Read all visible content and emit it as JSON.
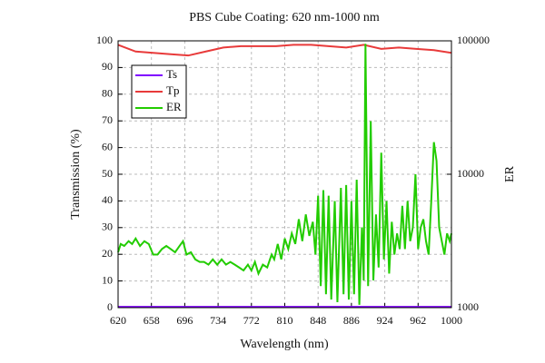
{
  "chart_data": {
    "type": "line",
    "title": "PBS Cube Coating: 620 nm-1000 nm",
    "x_label": "Wavelength (nm)",
    "y_label": "Transmission (%)",
    "y2_label": "ER",
    "xlim": [
      620,
      1000
    ],
    "xticks": [
      620,
      658,
      696,
      734,
      772,
      810,
      848,
      886,
      924,
      962,
      1000
    ],
    "ylim": [
      0,
      100
    ],
    "yticks": [
      0,
      10,
      20,
      30,
      40,
      50,
      60,
      70,
      80,
      90,
      100
    ],
    "y2lim": [
      1000,
      100000
    ],
    "y2ticks": [
      1000,
      10000,
      100000
    ],
    "y2_log": true,
    "grid": true,
    "legend": "upper-left",
    "series": [
      {
        "name": "Ts",
        "color": "#8000ff",
        "axis": "y",
        "x": [
          620,
          1000
        ],
        "values": [
          0.3,
          0.3
        ]
      },
      {
        "name": "Tp",
        "color": "#e83a3a",
        "axis": "y",
        "x": [
          620,
          640,
          660,
          680,
          700,
          720,
          740,
          760,
          780,
          800,
          820,
          840,
          860,
          880,
          900,
          920,
          940,
          960,
          980,
          1000
        ],
        "values": [
          98.5,
          96,
          95.5,
          95,
          94.5,
          96,
          97.5,
          98,
          98,
          98,
          98.5,
          98.5,
          98,
          97.5,
          98.5,
          97,
          97.5,
          97,
          96.5,
          95.5
        ]
      },
      {
        "name": "ER",
        "color": "#22cc00",
        "axis": "y2",
        "x": [
          620,
          623,
          627,
          632,
          636,
          640,
          645,
          650,
          655,
          660,
          665,
          670,
          675,
          680,
          685,
          690,
          694,
          698,
          703,
          708,
          713,
          718,
          723,
          728,
          733,
          738,
          743,
          748,
          753,
          758,
          763,
          768,
          772,
          776,
          780,
          785,
          790,
          795,
          798,
          802,
          806,
          810,
          814,
          818,
          822,
          826,
          830,
          834,
          838,
          842,
          845,
          848,
          851,
          854,
          857,
          860,
          863,
          867,
          870,
          874,
          877,
          880,
          883,
          886,
          889,
          892,
          895,
          898,
          900,
          902,
          905,
          908,
          911,
          914,
          917,
          920,
          923,
          926,
          929,
          932,
          935,
          938,
          941,
          944,
          947,
          950,
          953,
          956,
          959,
          962,
          965,
          968,
          971,
          974,
          977,
          980,
          983,
          986,
          989,
          992,
          995,
          998,
          1000
        ],
        "values": [
          2600,
          3000,
          2900,
          3150,
          3000,
          3300,
          2900,
          3150,
          3000,
          2500,
          2500,
          2750,
          2900,
          2750,
          2600,
          2900,
          3150,
          2500,
          2600,
          2300,
          2200,
          2200,
          2100,
          2300,
          2100,
          2300,
          2100,
          2200,
          2100,
          2000,
          1900,
          2100,
          1900,
          2200,
          1800,
          2100,
          2000,
          2500,
          2300,
          3000,
          2300,
          3300,
          2750,
          3600,
          3000,
          4600,
          3150,
          5000,
          3450,
          4400,
          2500,
          6900,
          1450,
          7600,
          1260,
          6900,
          1150,
          6300,
          1100,
          7900,
          1260,
          8300,
          1150,
          6300,
          1260,
          9100,
          1050,
          4000,
          1600,
          95000,
          1450,
          25000,
          1600,
          5000,
          2000,
          14500,
          2300,
          6300,
          1800,
          4400,
          2500,
          3600,
          2750,
          5800,
          2750,
          6300,
          3150,
          4000,
          10000,
          2750,
          4000,
          4600,
          3150,
          2500,
          6300,
          17400,
          12600,
          4000,
          3150,
          2500,
          3600,
          3150,
          3600
        ]
      }
    ]
  }
}
